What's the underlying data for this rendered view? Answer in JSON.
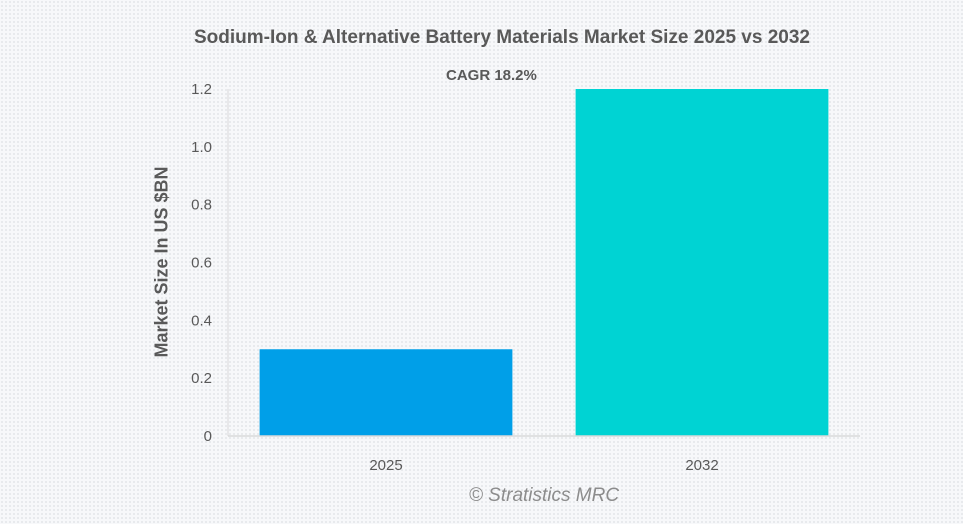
{
  "chart_data": {
    "type": "bar",
    "title": "Sodium-Ion & Alternative Battery Materials Market Size 2025 vs 2032",
    "annotation": "CAGR 18.2%",
    "xlabel": "",
    "ylabel": "Market Size In US $BN",
    "categories": [
      "2025",
      "2032"
    ],
    "values": [
      0.3,
      1.2
    ],
    "colors": [
      "#009fe8",
      "#00d3d3"
    ],
    "ylim": [
      0,
      1.2
    ],
    "yticks": [
      0,
      0.2,
      0.4,
      0.6,
      0.8,
      1.0,
      1.2
    ],
    "ytick_labels": [
      "0",
      "0.2",
      "0.4",
      "0.6",
      "0.8",
      "1.0",
      "1.2"
    ],
    "grid": false,
    "legend": "none"
  },
  "watermark": "© Stratistics MRC"
}
